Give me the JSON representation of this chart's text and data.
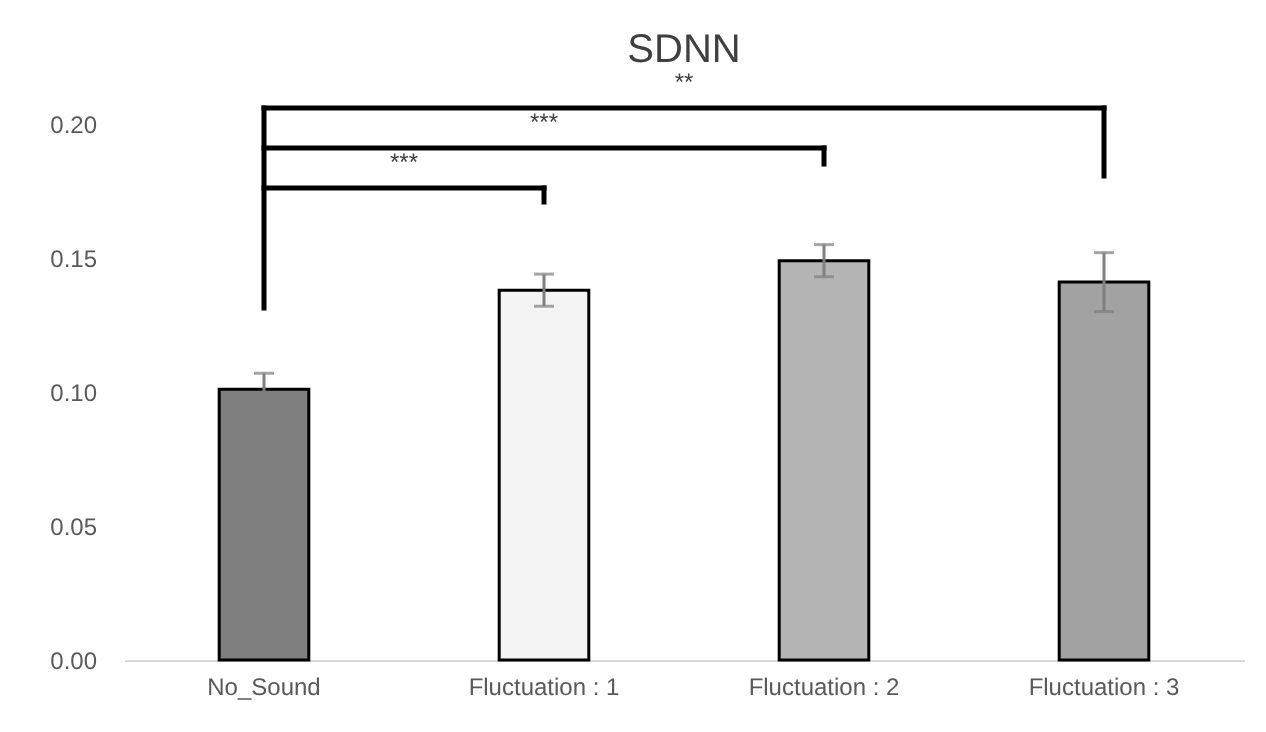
{
  "chart_data": {
    "type": "bar",
    "title": "SDNN",
    "categories": [
      "No_Sound",
      "Fluctuation : 1",
      "Fluctuation : 2",
      "Fluctuation : 3"
    ],
    "values": [
      0.101,
      0.138,
      0.149,
      0.141
    ],
    "errors": [
      0.006,
      0.006,
      0.006,
      0.011
    ],
    "colors": [
      "#7f7f7f",
      "#f4f4f4",
      "#b4b4b4",
      "#a2a2a2"
    ],
    "ylim": [
      0,
      0.2
    ],
    "yticks": [
      {
        "value": 0,
        "label": "0.00"
      },
      {
        "value": 0.05,
        "label": "0.05"
      },
      {
        "value": 0.1,
        "label": "0.10"
      },
      {
        "value": 0.15,
        "label": "0.15"
      },
      {
        "value": 0.2,
        "label": "0.20"
      }
    ],
    "annotations": [
      "***",
      "***",
      "**"
    ],
    "grid": false
  }
}
